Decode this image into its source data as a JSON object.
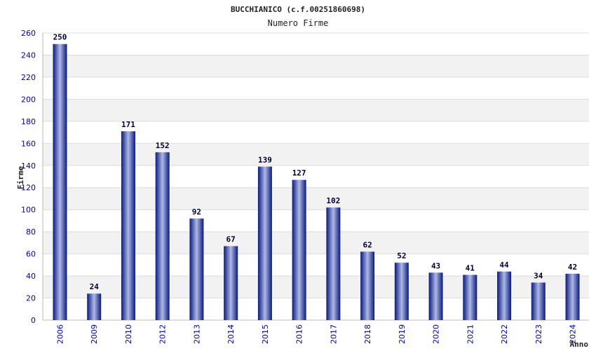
{
  "chart_data": {
    "type": "bar",
    "title": "BUCCHIANICO (c.f.00251860698)",
    "subtitle": "Numero Firme",
    "xlabel": "Anno",
    "ylabel": "Firme",
    "ylim": [
      0,
      260
    ],
    "yticks": [
      "0",
      "20",
      "40",
      "60",
      "80",
      "100",
      "120",
      "140",
      "160",
      "180",
      "200",
      "220",
      "240",
      "260"
    ],
    "categories": [
      "2006",
      "2009",
      "2010",
      "2012",
      "2013",
      "2014",
      "2015",
      "2016",
      "2017",
      "2018",
      "2019",
      "2020",
      "2021",
      "2022",
      "2023",
      "2024"
    ],
    "values": [
      250,
      24,
      171,
      152,
      92,
      67,
      139,
      127,
      102,
      62,
      52,
      43,
      41,
      44,
      34,
      42
    ],
    "grid": true,
    "legend": "none",
    "colors": {
      "bar_dark": "#0a1a7a",
      "bar_light": "#aeb8e8",
      "band": "#f2f2f2",
      "grid": "#dddddd",
      "tick_text": "#0000aa"
    }
  }
}
